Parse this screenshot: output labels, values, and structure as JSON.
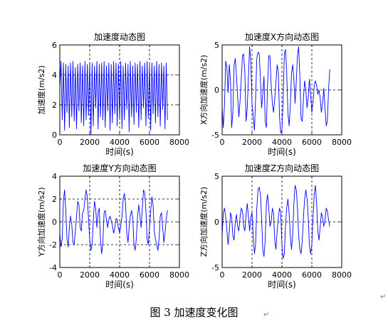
{
  "figure": {
    "caption": "图 3 加速度变化图",
    "return_mark": "↵"
  },
  "chart_data": [
    {
      "type": "line",
      "title": "加速度动态图",
      "xlabel": "时间(s)",
      "ylabel": "加速度(m/s2)",
      "xlim": [
        0,
        8000
      ],
      "ylim": [
        0,
        6
      ],
      "xticks": [
        0,
        2000,
        4000,
        6000,
        8000
      ],
      "yticks": [
        0,
        2,
        4,
        6
      ],
      "grid": "dashed",
      "series": [
        {
          "color": "#0000ff",
          "x": [
            0,
            80,
            160,
            240,
            320,
            400,
            480,
            560,
            640,
            720,
            800,
            880,
            960,
            1040,
            1120,
            1200,
            1280,
            1360,
            1440,
            1520,
            1600,
            1680,
            1760,
            1840,
            1920,
            2000,
            2080,
            2160,
            2240,
            2320,
            2400,
            2480,
            2560,
            2640,
            2720,
            2800,
            2880,
            2960,
            3040,
            3120,
            3200,
            3280,
            3360,
            3440,
            3520,
            3600,
            3680,
            3760,
            3840,
            3920,
            4000,
            4080,
            4160,
            4240,
            4320,
            4400,
            4480,
            4560,
            4640,
            4720,
            4800,
            4880,
            4960,
            5040,
            5120,
            5200,
            5280,
            5360,
            5440,
            5520,
            5600,
            5680,
            5760,
            5840,
            5920,
            6000,
            6080,
            6160,
            6240,
            6320,
            6400,
            6480,
            6560,
            6640,
            6720,
            6800,
            6880,
            6960,
            7040,
            7120,
            7200
          ],
          "values": [
            3.0,
            4.9,
            1.0,
            4.8,
            0.3,
            4.7,
            1.5,
            4.6,
            0.5,
            4.8,
            1.2,
            4.9,
            0.9,
            4.5,
            0.4,
            4.7,
            1.6,
            4.8,
            0.8,
            4.6,
            0.6,
            4.9,
            1.0,
            4.7,
            1.3,
            4.8,
            0.0,
            4.8,
            0.6,
            4.6,
            1.8,
            4.9,
            0.4,
            4.7,
            1.2,
            4.8,
            1.0,
            4.9,
            0.5,
            4.6,
            1.6,
            4.8,
            0.3,
            4.7,
            0.8,
            4.9,
            1.4,
            4.8,
            0.6,
            4.7,
            1.1,
            4.9,
            0.4,
            4.6,
            1.0,
            4.8,
            1.7,
            4.7,
            0.2,
            4.9,
            1.2,
            4.6,
            0.7,
            4.8,
            1.5,
            4.7,
            0.5,
            4.9,
            1.0,
            4.6,
            1.8,
            4.8,
            0.6,
            4.9,
            1.1,
            4.7,
            0.3,
            4.8,
            1.4,
            4.6,
            0.8,
            4.9,
            1.2,
            4.7,
            0.6,
            4.8,
            1.7,
            4.6,
            0.4,
            4.8,
            1.0
          ]
        }
      ]
    },
    {
      "type": "line",
      "title": "加速度X方向动态图",
      "xlabel": "时间(s)",
      "ylabel": "X方向加速度(m/s2)",
      "xlim": [
        0,
        8000
      ],
      "ylim": [
        -5,
        5
      ],
      "xticks": [
        0,
        2000,
        4000,
        6000,
        8000
      ],
      "yticks": [
        -5,
        0,
        5
      ],
      "grid": "dashed",
      "series": [
        {
          "color": "#0000ff",
          "x": [
            0,
            80,
            160,
            240,
            320,
            400,
            480,
            560,
            640,
            720,
            800,
            880,
            960,
            1040,
            1120,
            1200,
            1280,
            1360,
            1440,
            1520,
            1600,
            1680,
            1760,
            1840,
            1920,
            2000,
            2080,
            2160,
            2240,
            2320,
            2400,
            2480,
            2560,
            2640,
            2720,
            2800,
            2880,
            2960,
            3040,
            3120,
            3200,
            3280,
            3360,
            3440,
            3520,
            3600,
            3680,
            3760,
            3840,
            3920,
            4000,
            4080,
            4160,
            4240,
            4320,
            4400,
            4480,
            4560,
            4640,
            4720,
            4800,
            4880,
            4960,
            5040,
            5120,
            5200,
            5280,
            5360,
            5440,
            5520,
            5600,
            5680,
            5760,
            5840,
            5920,
            6000,
            6080,
            6160,
            6240,
            6320,
            6400,
            6480,
            6560,
            6640,
            6720,
            6800,
            6880,
            6960,
            7040,
            7120,
            7200
          ],
          "values": [
            -2.0,
            -4.2,
            -1.5,
            3.2,
            2.5,
            -0.3,
            2.8,
            1.0,
            -4.2,
            -2.5,
            2.8,
            3.5,
            1.5,
            -0.8,
            -3.0,
            -1.2,
            1.2,
            3.8,
            4.0,
            2.0,
            -3.5,
            -2.0,
            1.5,
            4.8,
            3.2,
            -1.5,
            -3.0,
            -4.5,
            -1.0,
            3.5,
            4.2,
            4.0,
            1.2,
            -2.0,
            -0.5,
            1.5,
            -3.5,
            -4.2,
            0.5,
            3.8,
            3.8,
            0.5,
            -1.5,
            -2.5,
            -1.0,
            0.8,
            2.8,
            2.0,
            -3.0,
            -4.8,
            -4.5,
            -1.0,
            4.0,
            4.5,
            2.0,
            -2.5,
            -4.0,
            -1.8,
            1.8,
            2.8,
            1.2,
            -1.5,
            1.0,
            3.8,
            4.8,
            1.5,
            -3.2,
            -3.5,
            -1.0,
            1.0,
            0.0,
            -2.0,
            -0.8,
            1.2,
            -0.5,
            -2.5,
            -1.5,
            0.5,
            1.0,
            0.5,
            -0.5,
            0.0,
            -1.0,
            -2.5,
            -1.5,
            0.2,
            -2.0,
            -4.0,
            -3.5,
            0.0,
            2.3
          ]
        }
      ]
    },
    {
      "type": "line",
      "title": "加速度Y方向动态图",
      "xlabel": "时间(s)",
      "ylabel": "Y方向加速度(m/s2)",
      "xlim": [
        0,
        8000
      ],
      "ylim": [
        -4,
        4
      ],
      "xticks": [
        0,
        2000,
        4000,
        6000,
        8000
      ],
      "yticks": [
        -4,
        -2,
        0,
        2,
        4
      ],
      "grid": "dashed",
      "series": [
        {
          "color": "#0000ff",
          "x": [
            0,
            80,
            160,
            240,
            320,
            400,
            480,
            560,
            640,
            720,
            800,
            880,
            960,
            1040,
            1120,
            1200,
            1280,
            1360,
            1440,
            1520,
            1600,
            1680,
            1760,
            1840,
            1920,
            2000,
            2080,
            2160,
            2240,
            2320,
            2400,
            2480,
            2560,
            2640,
            2720,
            2800,
            2880,
            2960,
            3040,
            3120,
            3200,
            3280,
            3360,
            3440,
            3520,
            3600,
            3680,
            3760,
            3840,
            3920,
            4000,
            4080,
            4160,
            4240,
            4320,
            4400,
            4480,
            4560,
            4640,
            4720,
            4800,
            4880,
            4960,
            5040,
            5120,
            5200,
            5280,
            5360,
            5440,
            5520,
            5600,
            5680,
            5760,
            5840,
            5920,
            6000,
            6080,
            6160,
            6240,
            6320,
            6400,
            6480,
            6560,
            6640,
            6720,
            6800,
            6880,
            6960,
            7040,
            7120,
            7200
          ],
          "values": [
            -1.0,
            -2.2,
            -1.5,
            1.8,
            2.8,
            1.0,
            -1.5,
            -2.2,
            -0.5,
            0.5,
            -0.2,
            -1.8,
            -2.0,
            -0.8,
            0.5,
            1.8,
            1.5,
            -0.5,
            -0.8,
            0.8,
            1.0,
            2.0,
            2.8,
            2.2,
            0.3,
            -1.5,
            -2.5,
            -2.0,
            0.0,
            1.8,
            1.2,
            -0.5,
            0.8,
            1.2,
            -1.5,
            -2.8,
            -1.8,
            0.8,
            1.0,
            0.2,
            -0.5,
            0.2,
            0.5,
            0.1,
            -0.3,
            -1.0,
            -0.5,
            0.3,
            0.2,
            -0.5,
            -1.0,
            -0.3,
            0.5,
            2.0,
            2.5,
            1.5,
            -1.0,
            -1.8,
            -0.5,
            0.5,
            1.0,
            0.3,
            -2.0,
            -2.5,
            -1.5,
            0.5,
            1.5,
            0.5,
            -0.5,
            1.2,
            2.8,
            2.5,
            1.0,
            -1.5,
            -2.0,
            -0.5,
            1.0,
            2.2,
            1.5,
            -0.8,
            -1.5,
            -2.0,
            -2.5,
            -1.5,
            0.5,
            0.8,
            -0.5,
            -1.8,
            -1.0,
            0.3,
            1.0
          ]
        }
      ]
    },
    {
      "type": "line",
      "title": "加速度Z方向动态图",
      "xlabel": "时间(s)",
      "ylabel": "Z方向加速度(m/s2)",
      "xlim": [
        0,
        8000
      ],
      "ylim": [
        -5,
        5
      ],
      "xticks": [
        0,
        2000,
        4000,
        6000,
        8000
      ],
      "yticks": [
        -5,
        0,
        5
      ],
      "grid": "dashed",
      "series": [
        {
          "color": "#0000ff",
          "x": [
            0,
            80,
            160,
            240,
            320,
            400,
            480,
            560,
            640,
            720,
            800,
            880,
            960,
            1040,
            1120,
            1200,
            1280,
            1360,
            1440,
            1520,
            1600,
            1680,
            1760,
            1840,
            1920,
            2000,
            2080,
            2160,
            2240,
            2320,
            2400,
            2480,
            2560,
            2640,
            2720,
            2800,
            2880,
            2960,
            3040,
            3120,
            3200,
            3280,
            3360,
            3440,
            3520,
            3600,
            3680,
            3760,
            3840,
            3920,
            4000,
            4080,
            4160,
            4240,
            4320,
            4400,
            4480,
            4560,
            4640,
            4720,
            4800,
            4880,
            4960,
            5040,
            5120,
            5200,
            5280,
            5360,
            5440,
            5520,
            5600,
            5680,
            5760,
            5840,
            5920,
            6000,
            6080,
            6160,
            6240,
            6320,
            6400,
            6480,
            6560,
            6640,
            6720,
            6800,
            6880,
            6960,
            7040,
            7120,
            7200
          ],
          "values": [
            -1.5,
            1.0,
            1.5,
            0.5,
            -1.0,
            -2.5,
            -1.0,
            1.0,
            0.5,
            -1.5,
            -2.0,
            0.0,
            0.8,
            -0.5,
            -1.0,
            0.5,
            1.5,
            1.2,
            -0.5,
            -1.0,
            0.8,
            2.0,
            0.5,
            -1.0,
            0.5,
            1.0,
            -1.5,
            -3.5,
            -2.5,
            1.5,
            3.5,
            3.8,
            3.0,
            0.5,
            -3.0,
            -3.8,
            -2.0,
            2.0,
            3.0,
            1.5,
            -0.5,
            0.0,
            1.5,
            1.0,
            -2.0,
            -3.0,
            -1.0,
            0.5,
            1.5,
            1.0,
            -2.5,
            -4.0,
            -3.5,
            -0.5,
            1.5,
            2.5,
            1.0,
            -1.5,
            -3.0,
            -1.5,
            2.0,
            4.0,
            3.5,
            1.5,
            -1.5,
            -3.0,
            -3.5,
            -2.0,
            0.5,
            2.5,
            3.5,
            2.5,
            0.5,
            -2.5,
            -3.5,
            -2.5,
            0.5,
            3.0,
            4.0,
            2.0,
            -1.0,
            -2.0,
            -0.5,
            1.0,
            0.5,
            -0.5,
            0.2,
            1.5,
            1.2,
            0.2,
            -0.5
          ]
        }
      ]
    }
  ]
}
